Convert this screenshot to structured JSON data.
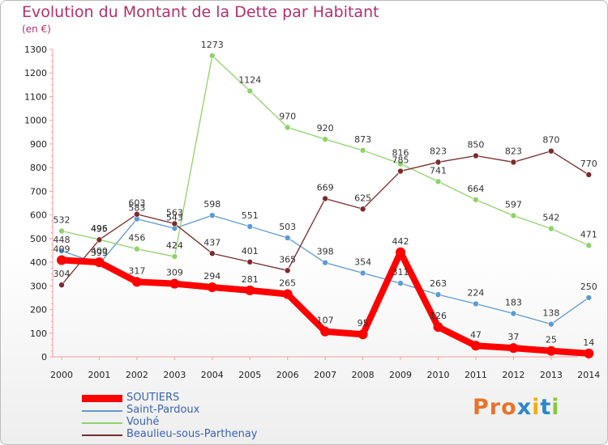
{
  "title": "Evolution du Montant de la Dette par Habitant",
  "subtitle": "(en €)",
  "logo": {
    "text": "Proxiti",
    "colors": [
      "#e8732a",
      "#e8732a",
      "#e8732a",
      "#2e86c9",
      "#f0b000",
      "#2e86c9",
      "#8cc63f"
    ]
  },
  "chart_data": {
    "type": "line",
    "x": [
      "2000",
      "2001",
      "2002",
      "2003",
      "2004",
      "2005",
      "2006",
      "2007",
      "2008",
      "2009",
      "2010",
      "2011",
      "2012",
      "2013",
      "2014"
    ],
    "ylim": [
      0,
      1300
    ],
    "yticks": [
      0,
      100,
      200,
      300,
      400,
      500,
      600,
      700,
      800,
      900,
      1000,
      1100,
      1200,
      1300
    ],
    "grid": false,
    "legend_position": "bottom-left",
    "series": [
      {
        "name": "SOUTIERS",
        "color": "#ff0000",
        "values": [
          409,
          400,
          317,
          309,
          294,
          281,
          265,
          107,
          95,
          442,
          126,
          47,
          37,
          25,
          14
        ]
      },
      {
        "name": "Saint-Pardoux",
        "color": "#5b9bd5",
        "values": [
          448,
          393,
          583,
          543,
          598,
          551,
          503,
          398,
          354,
          311,
          263,
          224,
          183,
          138,
          250
        ]
      },
      {
        "name": "Vouhé",
        "color": "#8fd36b",
        "values": [
          532,
          496,
          456,
          424,
          1273,
          1124,
          970,
          920,
          873,
          816,
          741,
          664,
          597,
          542,
          471
        ]
      },
      {
        "name": "Beaulieu-sous-Parthenay",
        "color": "#7b2a2a",
        "values": [
          304,
          495,
          603,
          563,
          437,
          401,
          365,
          669,
          625,
          785,
          823,
          850,
          823,
          870,
          770
        ]
      }
    ]
  }
}
